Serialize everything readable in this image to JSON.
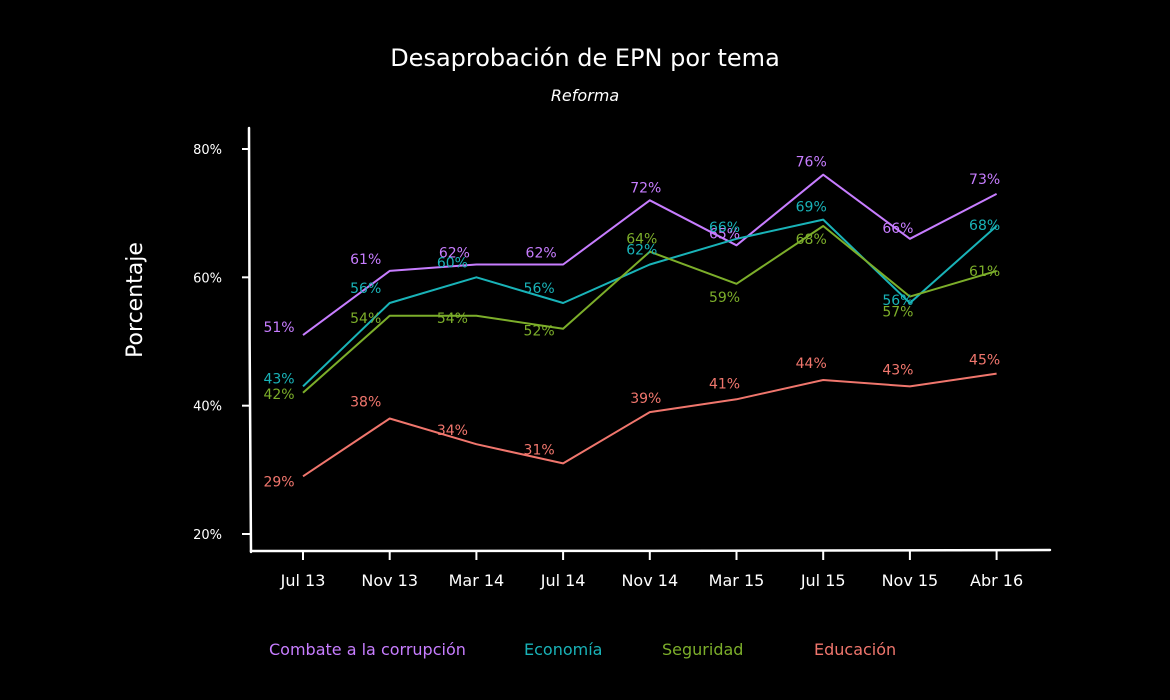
{
  "chart_data": {
    "type": "line",
    "title": "Desaprobación de EPN por tema",
    "subtitle": "Reforma",
    "xlabel": "",
    "ylabel": "Porcentaje",
    "ylim": [
      20,
      80
    ],
    "yticks": [
      20,
      40,
      60,
      80
    ],
    "ytick_labels": [
      "20%",
      "40%",
      "60%",
      "80%"
    ],
    "categories": [
      "Jul 13",
      "Nov 13",
      "Mar 14",
      "Jul 14",
      "Nov 14",
      "Mar 15",
      "Jul 15",
      "Nov 15",
      "Abr 16"
    ],
    "legend_position": "bottom",
    "series": [
      {
        "name": "Combate a la corrupción",
        "color": "#c77dff",
        "values": [
          51,
          61,
          62,
          62,
          72,
          65,
          76,
          66,
          73
        ],
        "labels": [
          "51%",
          "61%",
          "62%",
          "62%",
          "72%",
          "65%",
          "76%",
          "66%",
          "73%"
        ]
      },
      {
        "name": "Economía",
        "color": "#19b3b8",
        "values": [
          43,
          56,
          60,
          56,
          62,
          66,
          69,
          56,
          68
        ],
        "labels": [
          "43%",
          "56%",
          "60%",
          "56%",
          "62%",
          "66%",
          "69%",
          "56%",
          "68%"
        ]
      },
      {
        "name": "Seguridad",
        "color": "#7cae2a",
        "values": [
          42,
          54,
          54,
          52,
          64,
          59,
          68,
          57,
          61
        ],
        "labels": [
          "42%",
          "54%",
          "54%",
          "52%",
          "64%",
          "59%",
          "68%",
          "57%",
          "61%"
        ]
      },
      {
        "name": "Educación",
        "color": "#f0766d",
        "values": [
          29,
          38,
          34,
          31,
          39,
          41,
          44,
          43,
          45
        ],
        "labels": [
          "29%",
          "38%",
          "34%",
          "31%",
          "39%",
          "41%",
          "44%",
          "43%",
          "45%"
        ]
      }
    ]
  }
}
